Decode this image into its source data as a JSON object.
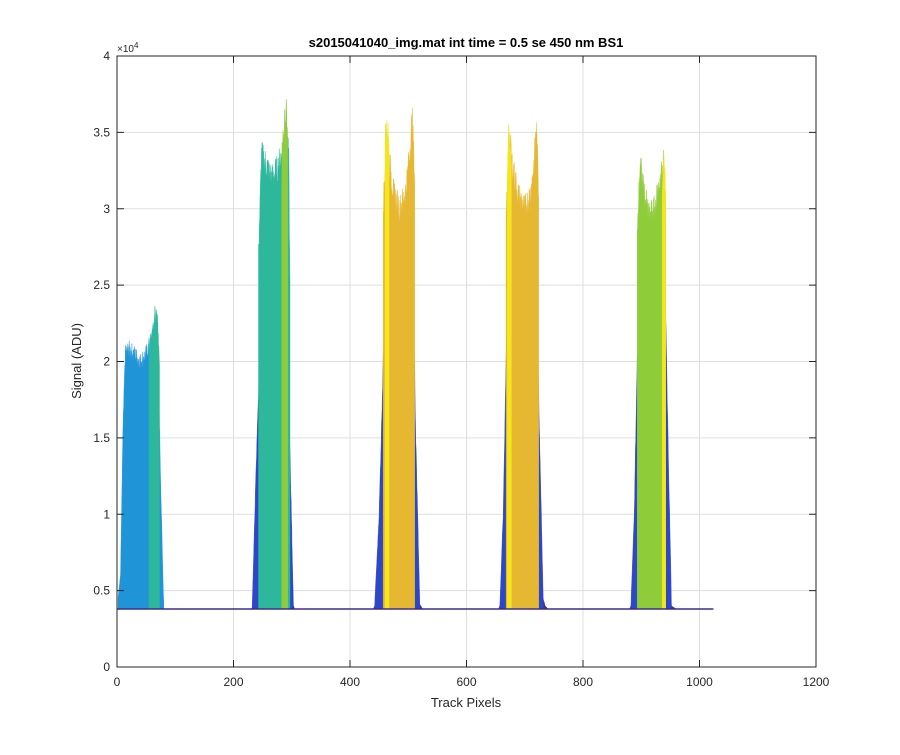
{
  "chart_data": {
    "type": "area",
    "title": "s2015041040_img.mat int time = 0.5 se  450 nm BS1",
    "xlabel": "Track Pixels",
    "ylabel": "Signal (ADU)",
    "xlim": [
      0,
      1200
    ],
    "ylim": [
      0,
      40000
    ],
    "x_ticks": [
      0,
      200,
      400,
      600,
      800,
      1000,
      1200
    ],
    "x_tick_labels": [
      "0",
      "200",
      "400",
      "600",
      "800",
      "1000",
      "1200"
    ],
    "y_ticks": [
      0,
      5000,
      10000,
      15000,
      20000,
      25000,
      30000,
      35000,
      40000
    ],
    "y_tick_labels": [
      "0",
      "0.5",
      "1",
      "1.5",
      "2",
      "2.5",
      "3",
      "3.5",
      "4"
    ],
    "y_exponent_label": "×10",
    "y_exponent_power": "4",
    "grid": true,
    "baseline": 3800,
    "x_extent": [
      0,
      1024
    ],
    "tracks": [
      {
        "x_range": [
          2,
          80
        ],
        "layers": [
          {
            "color": "#3d2f8c",
            "profile": [
              [
                2,
                4500
              ],
              [
                6,
                5500
              ],
              [
                10,
                7000
              ],
              [
                15,
                8000
              ],
              [
                20,
                9000
              ],
              [
                30,
                9500
              ],
              [
                40,
                9800
              ],
              [
                50,
                10000
              ],
              [
                58,
                12000
              ],
              [
                65,
                13500
              ],
              [
                70,
                12000
              ],
              [
                75,
                8000
              ],
              [
                80,
                4200
              ]
            ]
          },
          {
            "color": "#1f95d8",
            "profile": [
              [
                2,
                4600
              ],
              [
                6,
                6000
              ],
              [
                10,
                15000
              ],
              [
                14,
                20500
              ],
              [
                20,
                20800
              ],
              [
                30,
                20500
              ],
              [
                40,
                20000
              ],
              [
                50,
                20500
              ],
              [
                60,
                21500
              ],
              [
                65,
                22500
              ],
              [
                70,
                22000
              ],
              [
                75,
                12000
              ],
              [
                80,
                4300
              ]
            ]
          },
          {
            "color": "#2db79b",
            "profile": [
              [
                55,
                21000
              ],
              [
                60,
                22000
              ],
              [
                65,
                23000
              ],
              [
                70,
                22500
              ],
              [
                73,
                20000
              ]
            ]
          }
        ]
      },
      {
        "x_range": [
          230,
          305
        ],
        "layers": [
          {
            "color": "#3d2f8c",
            "profile": [
              [
                230,
                3800
              ],
              [
                235,
                4000
              ],
              [
                242,
                5500
              ],
              [
                250,
                6000
              ],
              [
                260,
                5500
              ],
              [
                270,
                5000
              ],
              [
                280,
                5200
              ],
              [
                290,
                5500
              ],
              [
                298,
                4500
              ],
              [
                305,
                3800
              ]
            ]
          },
          {
            "color": "#2e47c7",
            "profile": [
              [
                232,
                3800
              ],
              [
                238,
                12000
              ],
              [
                243,
                18000
              ],
              [
                248,
                23500
              ],
              [
                255,
                22500
              ],
              [
                265,
                21500
              ],
              [
                275,
                21000
              ],
              [
                285,
                22500
              ],
              [
                292,
                22000
              ],
              [
                297,
                14000
              ],
              [
                303,
                3900
              ]
            ]
          },
          {
            "color": "#2db79b",
            "profile": [
              [
                243,
                27000
              ],
              [
                248,
                33500
              ],
              [
                255,
                33000
              ],
              [
                265,
                32000
              ],
              [
                275,
                32500
              ],
              [
                285,
                34000
              ],
              [
                290,
                36000
              ],
              [
                295,
                33000
              ],
              [
                297,
                25000
              ]
            ]
          },
          {
            "color": "#8fcc3a",
            "profile": [
              [
                283,
                33000
              ],
              [
                287,
                35500
              ],
              [
                290,
                36500
              ],
              [
                293,
                35000
              ]
            ]
          }
        ]
      },
      {
        "x_range": [
          440,
          525
        ],
        "layers": [
          {
            "color": "#3d2f8c",
            "profile": [
              [
                440,
                3800
              ],
              [
                448,
                4500
              ],
              [
                455,
                6500
              ],
              [
                465,
                6700
              ],
              [
                475,
                6500
              ],
              [
                485,
                6400
              ],
              [
                495,
                6500
              ],
              [
                505,
                7000
              ],
              [
                510,
                5500
              ],
              [
                518,
                4200
              ],
              [
                525,
                3800
              ]
            ]
          },
          {
            "color": "#2e47c7",
            "profile": [
              [
                442,
                3800
              ],
              [
                450,
                10000
              ],
              [
                457,
                20000
              ],
              [
                462,
                28500
              ],
              [
                470,
                28000
              ],
              [
                480,
                26000
              ],
              [
                490,
                26500
              ],
              [
                500,
                28000
              ],
              [
                507,
                28500
              ],
              [
                513,
                15000
              ],
              [
                520,
                4000
              ]
            ]
          },
          {
            "color": "#e6b832",
            "profile": [
              [
                457,
                30000
              ],
              [
                462,
                35000
              ],
              [
                468,
                33000
              ],
              [
                475,
                31000
              ],
              [
                485,
                30000
              ],
              [
                495,
                31000
              ],
              [
                502,
                33500
              ],
              [
                507,
                36000
              ],
              [
                511,
                32000
              ]
            ]
          },
          {
            "color": "#f4e61a",
            "profile": [
              [
                460,
                34000
              ],
              [
                463,
                36000
              ],
              [
                467,
                34000
              ]
            ]
          }
        ]
      },
      {
        "x_range": [
          655,
          740
        ],
        "layers": [
          {
            "color": "#3d2f8c",
            "profile": [
              [
                655,
                3800
              ],
              [
                662,
                4500
              ],
              [
                668,
                6000
              ],
              [
                675,
                6500
              ],
              [
                685,
                6200
              ],
              [
                700,
                6000
              ],
              [
                712,
                6300
              ],
              [
                720,
                6500
              ],
              [
                728,
                5000
              ],
              [
                735,
                4000
              ],
              [
                740,
                3800
              ]
            ]
          },
          {
            "color": "#2e47c7",
            "profile": [
              [
                657,
                3800
              ],
              [
                663,
                10000
              ],
              [
                668,
                20000
              ],
              [
                673,
                28500
              ],
              [
                680,
                28000
              ],
              [
                690,
                26000
              ],
              [
                700,
                26000
              ],
              [
                710,
                27000
              ],
              [
                718,
                28500
              ],
              [
                725,
                16000
              ],
              [
                732,
                4000
              ]
            ]
          },
          {
            "color": "#e6b832",
            "profile": [
              [
                668,
                29000
              ],
              [
                673,
                35000
              ],
              [
                678,
                33000
              ],
              [
                688,
                31000
              ],
              [
                700,
                30000
              ],
              [
                710,
                31000
              ],
              [
                716,
                33000
              ],
              [
                720,
                35500
              ],
              [
                724,
                31000
              ]
            ]
          },
          {
            "color": "#f4e61a",
            "profile": [
              [
                670,
                33000
              ],
              [
                673,
                35500
              ],
              [
                677,
                33500
              ]
            ]
          }
        ]
      },
      {
        "x_range": [
          880,
          960
        ],
        "layers": [
          {
            "color": "#3d2f8c",
            "profile": [
              [
                880,
                3800
              ],
              [
                887,
                4500
              ],
              [
                893,
                5500
              ],
              [
                900,
                6000
              ],
              [
                910,
                5800
              ],
              [
                920,
                5600
              ],
              [
                930,
                6000
              ],
              [
                938,
                6200
              ],
              [
                945,
                5000
              ],
              [
                952,
                4000
              ],
              [
                960,
                3800
              ]
            ]
          },
          {
            "color": "#2e47c7",
            "profile": [
              [
                882,
                3800
              ],
              [
                888,
                10000
              ],
              [
                893,
                20000
              ],
              [
                898,
                26500
              ],
              [
                905,
                25500
              ],
              [
                915,
                24000
              ],
              [
                925,
                24500
              ],
              [
                935,
                26500
              ],
              [
                940,
                27000
              ],
              [
                946,
                15000
              ],
              [
                952,
                4000
              ]
            ]
          },
          {
            "color": "#8fcc3a",
            "profile": [
              [
                893,
                28000
              ],
              [
                898,
                33000
              ],
              [
                903,
                31500
              ],
              [
                913,
                29500
              ],
              [
                923,
                30000
              ],
              [
                933,
                32000
              ],
              [
                938,
                33000
              ],
              [
                942,
                30000
              ]
            ]
          },
          {
            "color": "#f4e61a",
            "profile": [
              [
                936,
                31000
              ],
              [
                939,
                33500
              ],
              [
                942,
                31500
              ]
            ]
          }
        ]
      }
    ]
  }
}
